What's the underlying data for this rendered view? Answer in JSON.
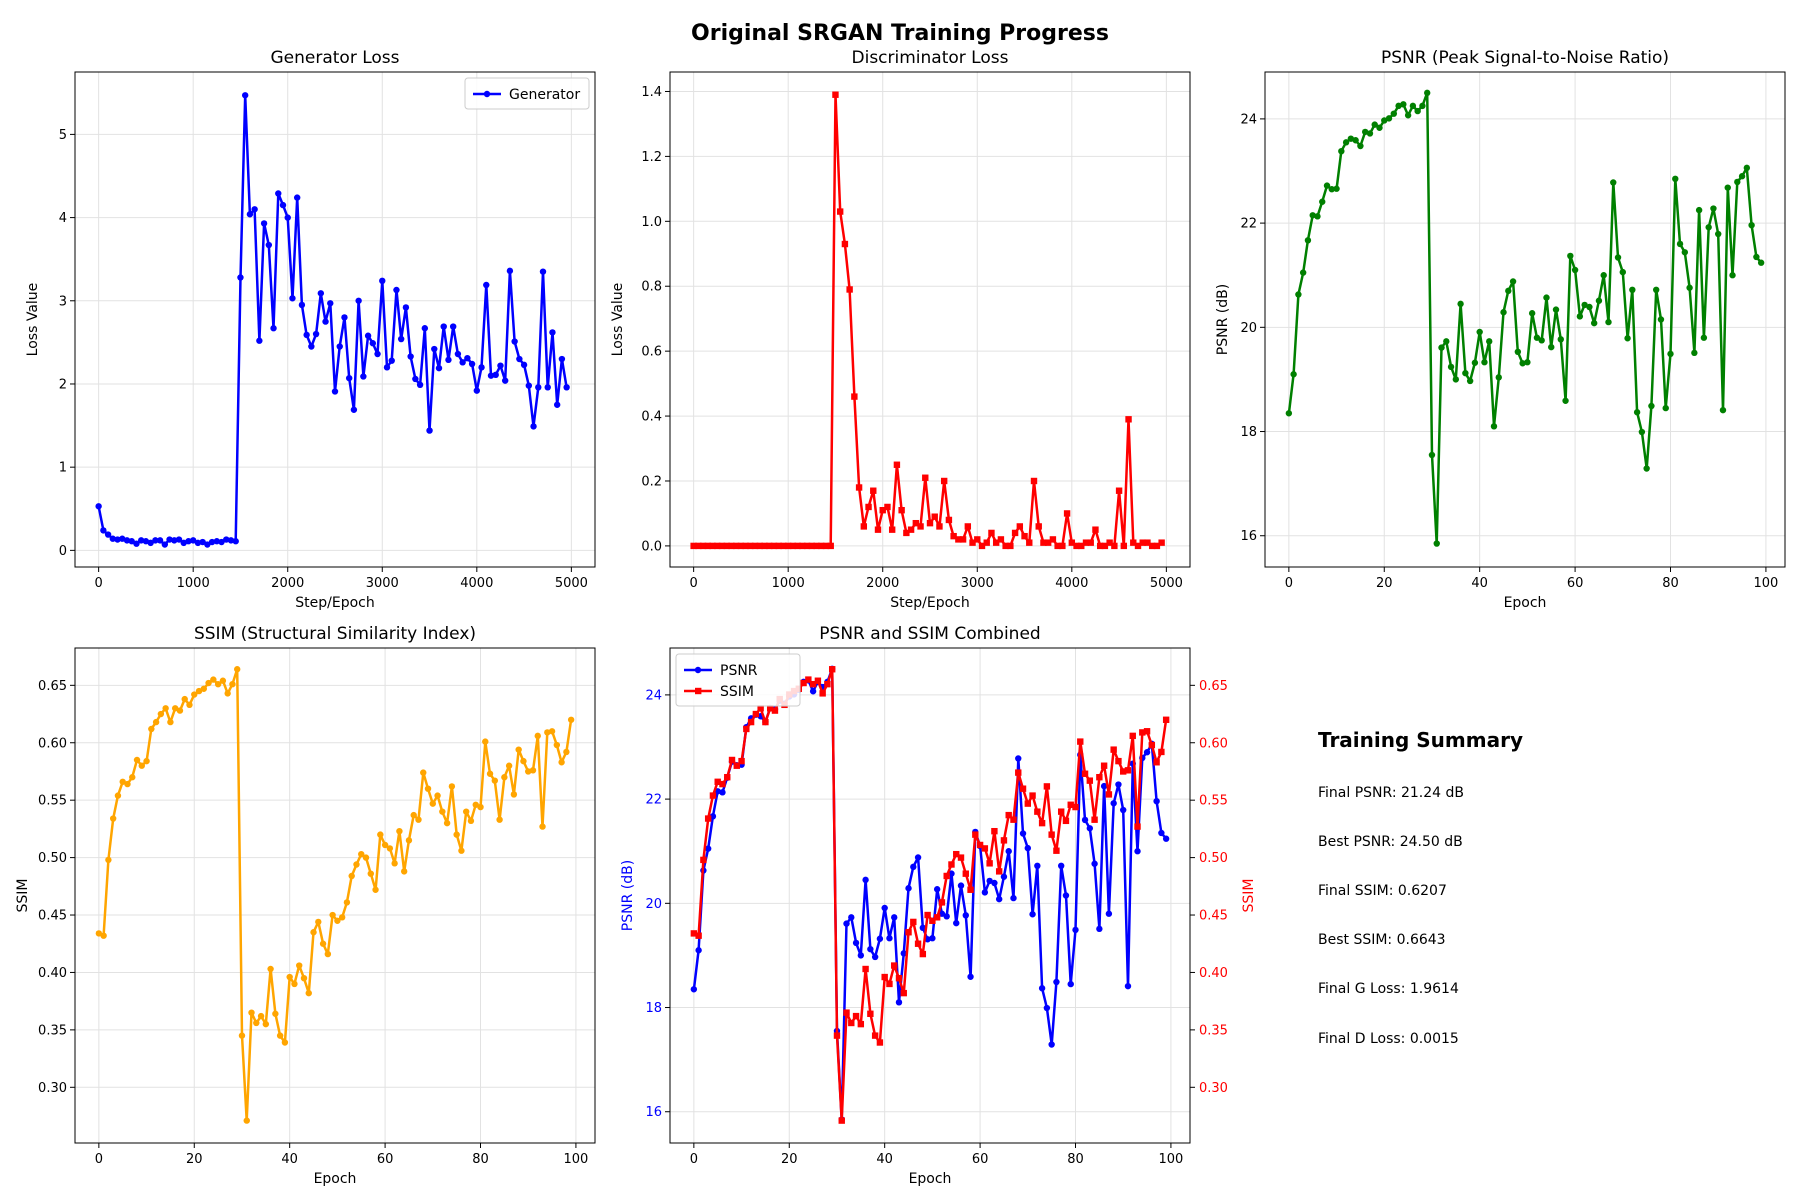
{
  "figure_title": "Original SRGAN Training Progress",
  "colors": {
    "generator": "#0000ff",
    "discriminator": "#ff0000",
    "psnr": "#008000",
    "ssim": "#ffa500",
    "combined_psnr": "#0000ff",
    "combined_ssim": "#ff0000"
  },
  "chart_data": [
    {
      "type": "line",
      "title": "Generator Loss",
      "xlabel": "Step/Epoch",
      "ylabel": "Loss Value",
      "xlim": [
        -250,
        5250
      ],
      "ylim": [
        -0.2,
        5.75
      ],
      "xticks": [
        0,
        1000,
        2000,
        3000,
        4000,
        5000
      ],
      "yticks": [
        0,
        1,
        2,
        3,
        4,
        5
      ],
      "grid": true,
      "legend": "top-right",
      "series": [
        {
          "name": "Generator",
          "color": "#0000ff",
          "marker": "circle",
          "x": [
            0,
            50,
            100,
            150,
            200,
            250,
            300,
            350,
            400,
            450,
            500,
            550,
            600,
            650,
            700,
            750,
            800,
            850,
            900,
            950,
            1000,
            1050,
            1100,
            1150,
            1200,
            1250,
            1300,
            1350,
            1400,
            1450,
            1500,
            1550,
            1600,
            1650,
            1700,
            1750,
            1800,
            1850,
            1900,
            1950,
            2000,
            2050,
            2100,
            2150,
            2200,
            2250,
            2300,
            2350,
            2400,
            2450,
            2500,
            2550,
            2600,
            2650,
            2700,
            2750,
            2800,
            2850,
            2900,
            2950,
            3000,
            3050,
            3100,
            3150,
            3200,
            3250,
            3300,
            3350,
            3400,
            3450,
            3500,
            3550,
            3600,
            3650,
            3700,
            3750,
            3800,
            3850,
            3900,
            3950,
            4000,
            4050,
            4100,
            4150,
            4200,
            4250,
            4300,
            4350,
            4400,
            4450,
            4500,
            4550,
            4600,
            4650,
            4700,
            4750,
            4800,
            4850,
            4900,
            4950
          ],
          "y": [
            0.53,
            0.24,
            0.19,
            0.14,
            0.13,
            0.14,
            0.12,
            0.11,
            0.08,
            0.12,
            0.11,
            0.09,
            0.12,
            0.12,
            0.07,
            0.13,
            0.12,
            0.13,
            0.09,
            0.11,
            0.12,
            0.09,
            0.1,
            0.07,
            0.1,
            0.11,
            0.1,
            0.13,
            0.12,
            0.11,
            3.28,
            5.47,
            4.04,
            4.1,
            2.52,
            3.93,
            3.67,
            2.67,
            4.29,
            4.15,
            4.0,
            3.03,
            4.24,
            2.95,
            2.59,
            2.45,
            2.6,
            3.09,
            2.75,
            2.97,
            1.91,
            2.45,
            2.8,
            2.07,
            1.69,
            3.0,
            2.09,
            2.58,
            2.49,
            2.36,
            3.24,
            2.2,
            2.28,
            3.13,
            2.54,
            2.92,
            2.33,
            2.06,
            1.99,
            2.67,
            1.44,
            2.42,
            2.19,
            2.69,
            2.29,
            2.69,
            2.36,
            2.26,
            2.31,
            2.24,
            1.92,
            2.2,
            3.19,
            2.1,
            2.11,
            2.22,
            2.04,
            3.36,
            2.51,
            2.3,
            2.23,
            1.98,
            1.49,
            1.96,
            3.35,
            1.96,
            2.62,
            1.75,
            2.3,
            1.96
          ]
        }
      ]
    },
    {
      "type": "line",
      "title": "Discriminator Loss",
      "xlabel": "Step/Epoch",
      "ylabel": "Loss Value",
      "xlim": [
        -250,
        5250
      ],
      "ylim": [
        -0.065,
        1.46
      ],
      "xticks": [
        0,
        1000,
        2000,
        3000,
        4000,
        5000
      ],
      "yticks": [
        0.0,
        0.2,
        0.4,
        0.6,
        0.8,
        1.0,
        1.2,
        1.4
      ],
      "grid": true,
      "series": [
        {
          "name": "",
          "color": "#ff0000",
          "marker": "square",
          "x": [
            0,
            50,
            100,
            150,
            200,
            250,
            300,
            350,
            400,
            450,
            500,
            550,
            600,
            650,
            700,
            750,
            800,
            850,
            900,
            950,
            1000,
            1050,
            1100,
            1150,
            1200,
            1250,
            1300,
            1350,
            1400,
            1450,
            1500,
            1550,
            1600,
            1650,
            1700,
            1750,
            1800,
            1850,
            1900,
            1950,
            2000,
            2050,
            2100,
            2150,
            2200,
            2250,
            2300,
            2350,
            2400,
            2450,
            2500,
            2550,
            2600,
            2650,
            2700,
            2750,
            2800,
            2850,
            2900,
            2950,
            3000,
            3050,
            3100,
            3150,
            3200,
            3250,
            3300,
            3350,
            3400,
            3450,
            3500,
            3550,
            3600,
            3650,
            3700,
            3750,
            3800,
            3850,
            3900,
            3950,
            4000,
            4050,
            4100,
            4150,
            4200,
            4250,
            4300,
            4350,
            4400,
            4450,
            4500,
            4550,
            4600,
            4650,
            4700,
            4750,
            4800,
            4850,
            4900,
            4950
          ],
          "y": [
            0,
            0,
            0,
            0,
            0,
            0,
            0,
            0,
            0,
            0,
            0,
            0,
            0,
            0,
            0,
            0,
            0,
            0,
            0,
            0,
            0,
            0,
            0,
            0,
            0,
            0,
            0,
            0,
            0,
            0,
            1.39,
            1.03,
            0.93,
            0.79,
            0.46,
            0.18,
            0.06,
            0.12,
            0.17,
            0.05,
            0.11,
            0.12,
            0.05,
            0.25,
            0.11,
            0.04,
            0.05,
            0.07,
            0.06,
            0.21,
            0.07,
            0.09,
            0.06,
            0.2,
            0.08,
            0.03,
            0.02,
            0.02,
            0.06,
            0.01,
            0.02,
            0.0,
            0.01,
            0.04,
            0.01,
            0.02,
            0.0,
            0.0,
            0.04,
            0.06,
            0.03,
            0.01,
            0.2,
            0.06,
            0.01,
            0.01,
            0.02,
            0.0,
            0.0,
            0.1,
            0.01,
            0.0,
            0.0,
            0.01,
            0.01,
            0.05,
            0.0,
            0.0,
            0.01,
            0.0,
            0.17,
            0.0,
            0.39,
            0.01,
            0.0,
            0.01,
            0.01,
            0.0,
            0.0,
            0.01
          ]
        }
      ]
    },
    {
      "type": "line",
      "title": "PSNR (Peak Signal-to-Noise Ratio)",
      "xlabel": "Epoch",
      "ylabel": "PSNR (dB)",
      "xlim": [
        -5,
        104
      ],
      "ylim": [
        15.4,
        24.9
      ],
      "xticks": [
        0,
        20,
        40,
        60,
        80,
        100
      ],
      "yticks": [
        16,
        18,
        20,
        22,
        24
      ],
      "grid": true,
      "series": [
        {
          "name": "",
          "color": "#008000",
          "marker": "circle",
          "x": [
            0,
            1,
            2,
            3,
            4,
            5,
            6,
            7,
            8,
            9,
            10,
            11,
            12,
            13,
            14,
            15,
            16,
            17,
            18,
            19,
            20,
            21,
            22,
            23,
            24,
            25,
            26,
            27,
            28,
            29,
            30,
            31,
            32,
            33,
            34,
            35,
            36,
            37,
            38,
            39,
            40,
            41,
            42,
            43,
            44,
            45,
            46,
            47,
            48,
            49,
            50,
            51,
            52,
            53,
            54,
            55,
            56,
            57,
            58,
            59,
            60,
            61,
            62,
            63,
            64,
            65,
            66,
            67,
            68,
            69,
            70,
            71,
            72,
            73,
            74,
            75,
            76,
            77,
            78,
            79,
            80,
            81,
            82,
            83,
            84,
            85,
            86,
            87,
            88,
            89,
            90,
            91,
            92,
            93,
            94,
            95,
            96,
            97,
            98,
            99
          ],
          "y": [
            18.35,
            19.1,
            20.63,
            21.05,
            21.67,
            22.15,
            22.13,
            22.41,
            22.72,
            22.65,
            22.66,
            23.38,
            23.55,
            23.62,
            23.59,
            23.48,
            23.75,
            23.72,
            23.89,
            23.83,
            23.97,
            24.01,
            24.1,
            24.25,
            24.28,
            24.07,
            24.25,
            24.15,
            24.25,
            24.5,
            17.55,
            15.85,
            19.61,
            19.73,
            19.24,
            19.0,
            20.45,
            19.12,
            18.97,
            19.32,
            19.91,
            19.33,
            19.73,
            18.1,
            19.04,
            20.29,
            20.7,
            20.88,
            19.53,
            19.31,
            19.33,
            20.27,
            19.8,
            19.75,
            20.57,
            19.62,
            20.34,
            19.77,
            18.59,
            21.37,
            21.1,
            20.21,
            20.43,
            20.39,
            20.08,
            20.51,
            21.0,
            20.1,
            22.78,
            21.34,
            21.06,
            19.79,
            20.72,
            18.37,
            17.99,
            17.29,
            18.49,
            20.72,
            20.15,
            18.45,
            19.49,
            22.85,
            21.6,
            21.44,
            20.76,
            19.51,
            22.25,
            19.8,
            21.92,
            22.28,
            21.79,
            18.41,
            22.68,
            21.0,
            22.79,
            22.9,
            23.06,
            21.96,
            21.35,
            21.24
          ]
        }
      ]
    },
    {
      "type": "line",
      "title": "SSIM (Structural Similarity Index)",
      "xlabel": "Epoch",
      "ylabel": "SSIM",
      "xlim": [
        -5,
        104
      ],
      "ylim": [
        0.2515,
        0.6825
      ],
      "xticks": [
        0,
        20,
        40,
        60,
        80,
        100
      ],
      "yticks": [
        0.3,
        0.35,
        0.4,
        0.45,
        0.5,
        0.55,
        0.6,
        0.65
      ],
      "grid": true,
      "series": [
        {
          "name": "",
          "color": "#ffa500",
          "marker": "circle",
          "x": [
            0,
            1,
            2,
            3,
            4,
            5,
            6,
            7,
            8,
            9,
            10,
            11,
            12,
            13,
            14,
            15,
            16,
            17,
            18,
            19,
            20,
            21,
            22,
            23,
            24,
            25,
            26,
            27,
            28,
            29,
            30,
            31,
            32,
            33,
            34,
            35,
            36,
            37,
            38,
            39,
            40,
            41,
            42,
            43,
            44,
            45,
            46,
            47,
            48,
            49,
            50,
            51,
            52,
            53,
            54,
            55,
            56,
            57,
            58,
            59,
            60,
            61,
            62,
            63,
            64,
            65,
            66,
            67,
            68,
            69,
            70,
            71,
            72,
            73,
            74,
            75,
            76,
            77,
            78,
            79,
            80,
            81,
            82,
            83,
            84,
            85,
            86,
            87,
            88,
            89,
            90,
            91,
            92,
            93,
            94,
            95,
            96,
            97,
            98,
            99
          ],
          "y": [
            0.434,
            0.432,
            0.498,
            0.534,
            0.554,
            0.566,
            0.564,
            0.57,
            0.585,
            0.58,
            0.584,
            0.612,
            0.618,
            0.625,
            0.63,
            0.618,
            0.63,
            0.628,
            0.638,
            0.633,
            0.642,
            0.645,
            0.647,
            0.652,
            0.655,
            0.651,
            0.654,
            0.643,
            0.651,
            0.664,
            0.345,
            0.271,
            0.365,
            0.356,
            0.362,
            0.355,
            0.403,
            0.364,
            0.345,
            0.339,
            0.396,
            0.39,
            0.406,
            0.395,
            0.382,
            0.435,
            0.444,
            0.425,
            0.416,
            0.45,
            0.445,
            0.448,
            0.461,
            0.484,
            0.494,
            0.503,
            0.5,
            0.486,
            0.472,
            0.52,
            0.511,
            0.508,
            0.495,
            0.523,
            0.488,
            0.515,
            0.537,
            0.533,
            0.574,
            0.56,
            0.547,
            0.554,
            0.54,
            0.53,
            0.562,
            0.52,
            0.506,
            0.54,
            0.532,
            0.546,
            0.544,
            0.601,
            0.573,
            0.567,
            0.533,
            0.57,
            0.58,
            0.555,
            0.594,
            0.584,
            0.575,
            0.576,
            0.606,
            0.527,
            0.609,
            0.61,
            0.598,
            0.583,
            0.592,
            0.62
          ]
        }
      ]
    },
    {
      "type": "line",
      "title": "PSNR and SSIM Combined",
      "xlabel": "Epoch",
      "ylabel": "PSNR (dB)",
      "ylabel_right": "SSIM",
      "xlim": [
        -5,
        104
      ],
      "ylim": [
        15.4,
        24.9
      ],
      "ylim_right": [
        0.2515,
        0.6825
      ],
      "xticks": [
        0,
        20,
        40,
        60,
        80,
        100
      ],
      "yticks": [
        16,
        18,
        20,
        22,
        24
      ],
      "yticks_right": [
        0.3,
        0.35,
        0.4,
        0.45,
        0.5,
        0.55,
        0.6,
        0.65
      ],
      "grid": true,
      "legend": "top-left",
      "series": [
        {
          "name": "PSNR",
          "axis": "left",
          "color": "#0000ff",
          "marker": "circle",
          "source": "psnr"
        },
        {
          "name": "SSIM",
          "axis": "right",
          "color": "#ff0000",
          "marker": "square",
          "source": "ssim"
        }
      ]
    }
  ],
  "summary": {
    "title": "Training Summary",
    "lines": [
      "Final PSNR: 21.24 dB",
      "Best PSNR: 24.50 dB",
      "Final SSIM: 0.6207",
      "Best SSIM: 0.6643",
      "Final G Loss: 1.9614",
      "Final D Loss: 0.0015"
    ]
  }
}
